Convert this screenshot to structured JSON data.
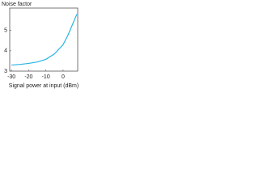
{
  "chart_data": {
    "type": "line",
    "y_label": "Noise factor",
    "x_label": "Signal power at input (dBm)",
    "x": [
      -30,
      -25,
      -20,
      -15,
      -10,
      -5,
      0,
      3,
      5,
      8
    ],
    "series": [
      {
        "name": null,
        "color": "#2ab4e6",
        "values": [
          3.3,
          3.33,
          3.38,
          3.45,
          3.58,
          3.85,
          4.3,
          4.8,
          5.2,
          5.8
        ]
      }
    ],
    "xlim": [
      -31,
      8.5
    ],
    "xticks": [
      -30,
      -20,
      -10,
      0
    ],
    "ylim": [
      3,
      6.1
    ],
    "yticks": [
      3,
      4,
      5
    ]
  }
}
